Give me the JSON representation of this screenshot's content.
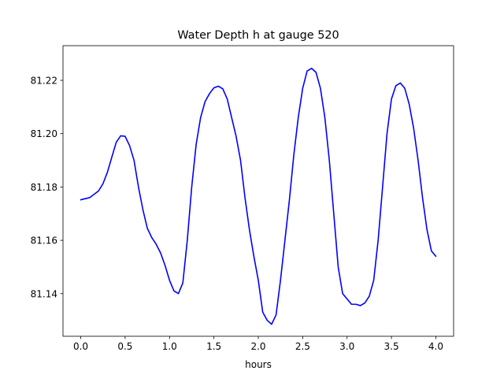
{
  "chart_data": {
    "type": "line",
    "title": "Water Depth h at gauge 520",
    "xlabel": "hours",
    "ylabel": "",
    "xlim": [
      -0.2,
      4.2
    ],
    "ylim": [
      81.124,
      81.233
    ],
    "x_ticks": [
      0.0,
      0.5,
      1.0,
      1.5,
      2.0,
      2.5,
      3.0,
      3.5,
      4.0
    ],
    "x_tick_labels": [
      "0.0",
      "0.5",
      "1.0",
      "1.5",
      "2.0",
      "2.5",
      "3.0",
      "3.5",
      "4.0"
    ],
    "y_ticks": [
      81.14,
      81.16,
      81.18,
      81.2,
      81.22
    ],
    "y_tick_labels": [
      "81.14",
      "81.16",
      "81.18",
      "81.20",
      "81.22"
    ],
    "grid": false,
    "legend": "none",
    "series": [
      {
        "color": "#0000ff",
        "x": [
          0.0,
          0.1,
          0.2,
          0.25,
          0.3,
          0.35,
          0.4,
          0.45,
          0.5,
          0.55,
          0.6,
          0.65,
          0.7,
          0.75,
          0.8,
          0.85,
          0.9,
          0.95,
          1.0,
          1.05,
          1.1,
          1.15,
          1.2,
          1.25,
          1.3,
          1.35,
          1.4,
          1.45,
          1.5,
          1.55,
          1.6,
          1.65,
          1.7,
          1.75,
          1.8,
          1.85,
          1.9,
          1.95,
          2.0,
          2.05,
          2.1,
          2.15,
          2.2,
          2.25,
          2.3,
          2.35,
          2.4,
          2.45,
          2.5,
          2.55,
          2.6,
          2.65,
          2.7,
          2.75,
          2.8,
          2.85,
          2.9,
          2.95,
          3.0,
          3.05,
          3.1,
          3.15,
          3.2,
          3.25,
          3.3,
          3.35,
          3.4,
          3.45,
          3.5,
          3.55,
          3.6,
          3.65,
          3.7,
          3.75,
          3.8,
          3.85,
          3.9,
          3.95,
          4.0
        ],
        "y": [
          81.1752,
          81.176,
          81.1785,
          81.1812,
          81.1855,
          81.1912,
          81.1968,
          81.1992,
          81.199,
          81.1955,
          81.19,
          81.18,
          81.1715,
          81.1645,
          81.161,
          81.1585,
          81.1552,
          81.1505,
          81.145,
          81.141,
          81.14,
          81.144,
          81.16,
          81.18,
          81.196,
          81.206,
          81.212,
          81.215,
          81.2172,
          81.2178,
          81.2168,
          81.213,
          81.206,
          81.199,
          81.19,
          81.176,
          81.164,
          81.154,
          81.145,
          81.133,
          81.13,
          81.1285,
          81.132,
          81.145,
          81.16,
          81.175,
          81.192,
          81.206,
          81.217,
          81.2235,
          81.2245,
          81.223,
          81.217,
          81.206,
          81.19,
          81.17,
          81.15,
          81.14,
          81.138,
          81.136,
          81.136,
          81.1355,
          81.1365,
          81.139,
          81.145,
          81.16,
          81.18,
          81.2,
          81.213,
          81.218,
          81.219,
          81.217,
          81.211,
          81.202,
          81.19,
          81.176,
          81.164,
          81.156,
          81.154
        ]
      }
    ]
  }
}
